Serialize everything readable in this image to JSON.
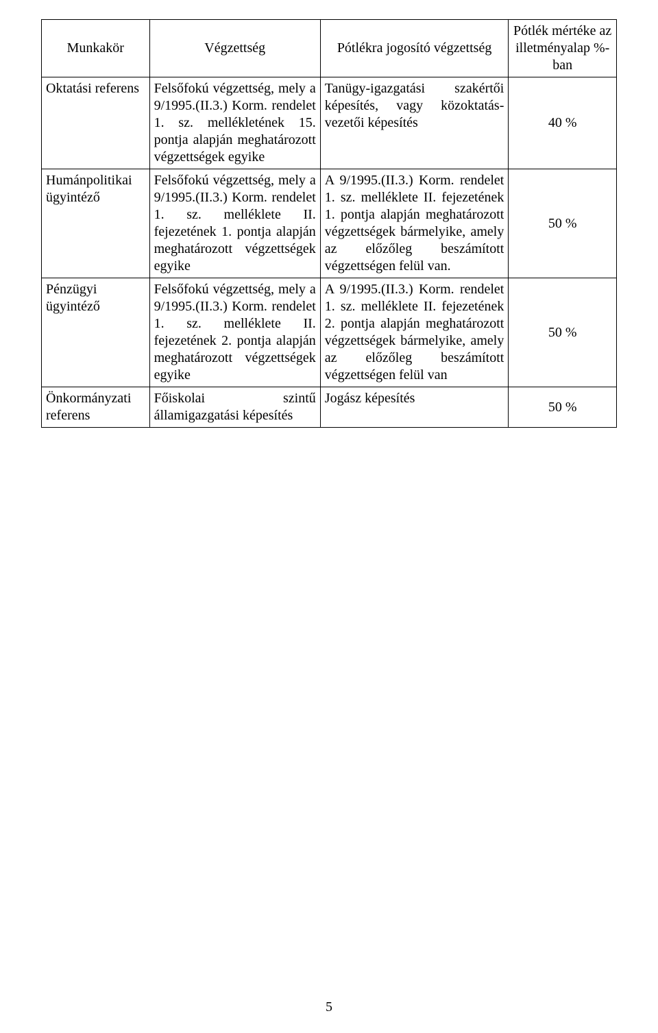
{
  "headers": {
    "col0": "Munkakör",
    "col1": "Végzettség",
    "col2": "Pótlékra jogosító végzettség",
    "col3": "Pótlék mértéke az illetményalap %-ban"
  },
  "rows": [
    {
      "munkakor": "Oktatási referens",
      "vegzettseg": "Felsőfokú végzettség, mely a 9/1995.(II.3.) Korm. rendelet 1. sz. mellékletének 15. pontja alapján meghatározott végzettségek egyike",
      "potlek_vegzettseg": "Tanügy-igazgatási szakértői képesítés, vagy közoktatás-vezetői képesítés",
      "merteke": "40 %"
    },
    {
      "munkakor": "Humánpolitikai ügyintéző",
      "vegzettseg": "Felsőfokú végzettség, mely a 9/1995.(II.3.) Korm. rendelet 1. sz. melléklete II. fejezetének 1. pontja alapján meghatározott végzettségek egyike",
      "potlek_vegzettseg": "A 9/1995.(II.3.) Korm. rendelet 1. sz. melléklete II. fejezetének 1. pontja alapján meghatározott végzettségek bármelyike, amely az előzőleg beszámított végzettségen felül van.",
      "merteke": "50 %"
    },
    {
      "munkakor": "Pénzügyi ügyintéző",
      "vegzettseg": "Felsőfokú végzettség, mely a 9/1995.(II.3.) Korm. rendelet 1. sz. melléklete II. fejezetének 2. pontja alapján meghatározott végzettségek egyike",
      "potlek_vegzettseg": "A 9/1995.(II.3.) Korm. rendelet 1. sz. melléklete II. fejezetének 2. pontja alapján meghatározott végzettségek bármelyike, amely az előzőleg beszámított végzettségen felül van",
      "merteke": "50 %"
    },
    {
      "munkakor": "Önkormányzati referens",
      "vegzettseg": "Főiskolai szintű államigazgatási képesítés",
      "potlek_vegzettseg": "Jogász képesítés",
      "merteke": "50 %"
    }
  ],
  "page_number": "5"
}
